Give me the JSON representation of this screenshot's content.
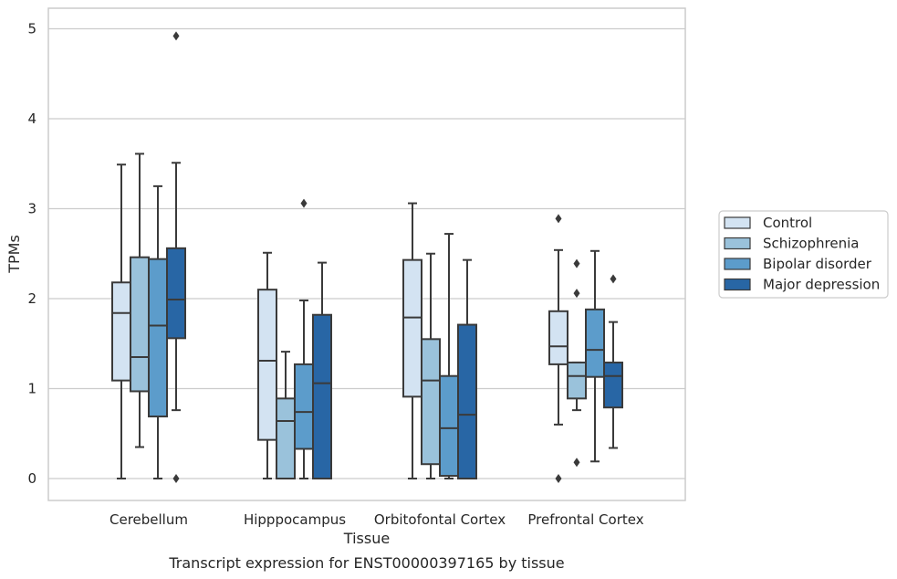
{
  "caption": "Transcript expression for ENST00000397165 by tissue",
  "chart_data": {
    "type": "boxplot",
    "xlabel": "Tissue",
    "ylabel": "TPMs",
    "ylim": [
      -0.23,
      5.18
    ],
    "yticks": [
      0,
      1,
      2,
      3,
      4,
      5
    ],
    "grid": true,
    "legend_position": "right",
    "categories": [
      "Cerebellum",
      "Hipppocampus",
      "Orbitofontal Cortex",
      "Prefrontal Cortex"
    ],
    "series": [
      {
        "name": "Control",
        "color": "#d3e3f2",
        "boxes": [
          {
            "whislo": 0.0,
            "q1": 1.09,
            "med": 1.84,
            "q3": 2.18,
            "whishi": 3.49,
            "fliers": []
          },
          {
            "whislo": 0.0,
            "q1": 0.43,
            "med": 1.31,
            "q3": 2.1,
            "whishi": 2.51,
            "fliers": []
          },
          {
            "whislo": 0.0,
            "q1": 0.91,
            "med": 1.79,
            "q3": 2.43,
            "whishi": 3.06,
            "fliers": []
          },
          {
            "whislo": 0.6,
            "q1": 1.27,
            "med": 1.47,
            "q3": 1.86,
            "whishi": 2.54,
            "fliers": [
              2.89,
              0.0
            ]
          }
        ]
      },
      {
        "name": "Schizophrenia",
        "color": "#9ac2db",
        "boxes": [
          {
            "whislo": 0.35,
            "q1": 0.97,
            "med": 1.35,
            "q3": 2.46,
            "whishi": 3.61,
            "fliers": []
          },
          {
            "whislo": 0.0,
            "q1": 0.0,
            "med": 0.64,
            "q3": 0.89,
            "whishi": 1.41,
            "fliers": []
          },
          {
            "whislo": 0.0,
            "q1": 0.16,
            "med": 1.09,
            "q3": 1.55,
            "whishi": 2.5,
            "fliers": []
          },
          {
            "whislo": 0.76,
            "q1": 0.89,
            "med": 1.14,
            "q3": 1.29,
            "whishi": 1.29,
            "fliers": [
              2.39,
              2.06,
              0.18
            ]
          }
        ]
      },
      {
        "name": "Bipolar disorder",
        "color": "#5c9ccb",
        "boxes": [
          {
            "whislo": 0.0,
            "q1": 0.69,
            "med": 1.7,
            "q3": 2.44,
            "whishi": 3.25,
            "fliers": []
          },
          {
            "whislo": 0.0,
            "q1": 0.33,
            "med": 0.74,
            "q3": 1.27,
            "whishi": 1.98,
            "fliers": [
              3.06
            ]
          },
          {
            "whislo": 0.0,
            "q1": 0.03,
            "med": 0.56,
            "q3": 1.14,
            "whishi": 2.72,
            "fliers": []
          },
          {
            "whislo": 0.19,
            "q1": 1.13,
            "med": 1.43,
            "q3": 1.88,
            "whishi": 2.53,
            "fliers": []
          }
        ]
      },
      {
        "name": "Major depression",
        "color": "#2866a5",
        "boxes": [
          {
            "whislo": 0.76,
            "q1": 1.56,
            "med": 1.99,
            "q3": 2.56,
            "whishi": 3.51,
            "fliers": [
              4.92,
              0.0
            ]
          },
          {
            "whislo": 0.0,
            "q1": 0.0,
            "med": 1.06,
            "q3": 1.82,
            "whishi": 2.4,
            "fliers": []
          },
          {
            "whislo": 0.0,
            "q1": 0.0,
            "med": 0.71,
            "q3": 1.71,
            "whishi": 2.43,
            "fliers": []
          },
          {
            "whislo": 0.34,
            "q1": 0.79,
            "med": 1.14,
            "q3": 1.29,
            "whishi": 1.74,
            "fliers": [
              2.22
            ]
          }
        ]
      }
    ]
  }
}
